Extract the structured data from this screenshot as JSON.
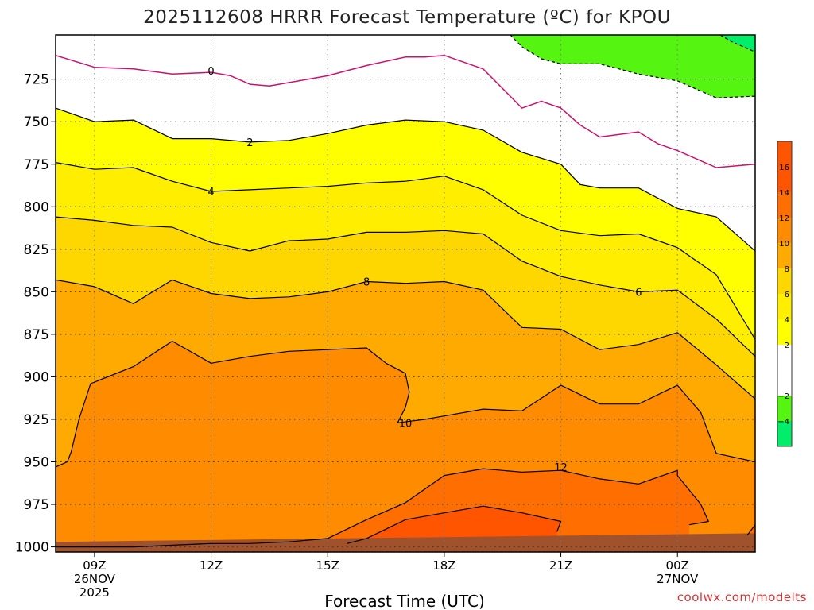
{
  "chart_data": {
    "type": "heatmap",
    "title": "2025112608 HRRR Forecast Temperature (ºC) for KPOU",
    "xlabel": "Forecast Time (UTC)",
    "credit": "coolwx.com/modelts",
    "x_ticks": [
      {
        "hour": 9,
        "lines": [
          "09Z",
          "26NOV",
          "2025"
        ]
      },
      {
        "hour": 12,
        "lines": [
          "12Z"
        ]
      },
      {
        "hour": 15,
        "lines": [
          "15Z"
        ]
      },
      {
        "hour": 18,
        "lines": [
          "18Z"
        ]
      },
      {
        "hour": 21,
        "lines": [
          "21Z"
        ]
      },
      {
        "hour": 24,
        "lines": [
          "00Z",
          "27NOV"
        ]
      }
    ],
    "xlim": [
      8,
      26
    ],
    "ylim": [
      1003,
      699
    ],
    "y_ticks": [
      725,
      750,
      775,
      800,
      825,
      850,
      875,
      900,
      925,
      950,
      975,
      1000
    ],
    "grid": true,
    "colorbar": {
      "bins": [
        {
          "min": -6,
          "max": -4,
          "color": "#00ee6a"
        },
        {
          "min": -4,
          "max": -2,
          "color": "#55f411"
        },
        {
          "min": -2,
          "max": 0,
          "color": "#ffffff"
        },
        {
          "min": 0,
          "max": 2,
          "color": "#ffffff"
        },
        {
          "min": 2,
          "max": 4,
          "color": "#ffff00"
        },
        {
          "min": 4,
          "max": 6,
          "color": "#ffee00"
        },
        {
          "min": 6,
          "max": 8,
          "color": "#ffd700"
        },
        {
          "min": 8,
          "max": 10,
          "color": "#ffaa00"
        },
        {
          "min": 10,
          "max": 12,
          "color": "#ff8c00"
        },
        {
          "min": 12,
          "max": 14,
          "color": "#ff6e00"
        },
        {
          "min": 14,
          "max": 16,
          "color": "#ff5500"
        },
        {
          "min": 16,
          "max": 18,
          "color": "#ff5500"
        }
      ],
      "tick_labels": [
        "−4",
        "−2",
        "2",
        "4",
        "6",
        "8",
        "10",
        "12",
        "14",
        "16"
      ],
      "tick_values": [
        -4,
        -2,
        2,
        4,
        6,
        8,
        10,
        12,
        14,
        16
      ]
    },
    "ground": {
      "color": "#a0522d",
      "pressure": [
        [
          8,
          997
        ],
        [
          26,
          992
        ]
      ]
    },
    "contours": [
      {
        "level": 0,
        "color": "#c8146e",
        "label": "0",
        "label_at": [
          12,
          720
        ],
        "points": [
          [
            8,
            711
          ],
          [
            9,
            718
          ],
          [
            10,
            719
          ],
          [
            11,
            722
          ],
          [
            12,
            721
          ],
          [
            12.5,
            723
          ],
          [
            13,
            728
          ],
          [
            13.5,
            729
          ],
          [
            14,
            727
          ],
          [
            15,
            723
          ],
          [
            16,
            717
          ],
          [
            17,
            712
          ],
          [
            17.5,
            712
          ],
          [
            18,
            711
          ],
          [
            19,
            719
          ],
          [
            20,
            742
          ],
          [
            20.5,
            738
          ],
          [
            21,
            742
          ],
          [
            21.5,
            752
          ],
          [
            22,
            759
          ],
          [
            23,
            756
          ],
          [
            23.5,
            763
          ],
          [
            24,
            767
          ],
          [
            25,
            777
          ],
          [
            26,
            775
          ]
        ]
      },
      {
        "level": 2,
        "color": "#000000",
        "label": "2",
        "label_at": [
          13,
          762
        ],
        "points": [
          [
            8,
            742
          ],
          [
            9,
            750
          ],
          [
            10,
            749
          ],
          [
            11,
            760
          ],
          [
            12,
            760
          ],
          [
            13,
            762
          ],
          [
            14,
            761
          ],
          [
            15,
            757
          ],
          [
            16,
            752
          ],
          [
            17,
            749
          ],
          [
            18,
            750
          ],
          [
            19,
            755
          ],
          [
            20,
            768
          ],
          [
            21,
            775
          ],
          [
            21.5,
            787
          ],
          [
            22,
            789
          ],
          [
            23,
            789
          ],
          [
            24,
            801
          ],
          [
            25,
            806
          ],
          [
            26,
            826
          ]
        ]
      },
      {
        "level": 4,
        "color": "#000000",
        "label": "4",
        "label_at": [
          12,
          791
        ],
        "points": [
          [
            8,
            774
          ],
          [
            9,
            778
          ],
          [
            10,
            777
          ],
          [
            11,
            785
          ],
          [
            12,
            791
          ],
          [
            13,
            790
          ],
          [
            14,
            789
          ],
          [
            15,
            788
          ],
          [
            16,
            786
          ],
          [
            17,
            785
          ],
          [
            18,
            782
          ],
          [
            19,
            790
          ],
          [
            20,
            805
          ],
          [
            21,
            814
          ],
          [
            22,
            817
          ],
          [
            23,
            816
          ],
          [
            24,
            824
          ],
          [
            25,
            840
          ],
          [
            26,
            878
          ]
        ]
      },
      {
        "level": 6,
        "color": "#000000",
        "label": "6",
        "label_at": [
          23,
          850
        ],
        "points": [
          [
            8,
            806
          ],
          [
            9,
            808
          ],
          [
            10,
            811
          ],
          [
            11,
            812
          ],
          [
            12,
            821
          ],
          [
            13,
            826
          ],
          [
            14,
            820
          ],
          [
            15,
            819
          ],
          [
            16,
            815
          ],
          [
            17,
            815
          ],
          [
            18,
            814
          ],
          [
            19,
            816
          ],
          [
            20,
            832
          ],
          [
            21,
            841
          ],
          [
            22,
            846
          ],
          [
            23,
            850
          ],
          [
            24,
            849
          ],
          [
            25,
            866
          ],
          [
            26,
            888
          ]
        ]
      },
      {
        "level": 8,
        "color": "#000000",
        "label": "8",
        "label_at": [
          16,
          844
        ],
        "points": [
          [
            8,
            843
          ],
          [
            9,
            847
          ],
          [
            10,
            857
          ],
          [
            11,
            843
          ],
          [
            12,
            851
          ],
          [
            13,
            854
          ],
          [
            14,
            853
          ],
          [
            15,
            850
          ],
          [
            16,
            844
          ],
          [
            17,
            845
          ],
          [
            18,
            844
          ],
          [
            19,
            849
          ],
          [
            20,
            871
          ],
          [
            21,
            872
          ],
          [
            22,
            884
          ],
          [
            23,
            881
          ],
          [
            24,
            874
          ],
          [
            25,
            893
          ],
          [
            26,
            913
          ]
        ]
      },
      {
        "level": 10,
        "color": "#000000",
        "label": "10",
        "label_at": [
          17,
          927
        ],
        "points": [
          [
            8,
            953
          ],
          [
            8.3,
            950
          ],
          [
            8.4,
            944
          ],
          [
            8.6,
            925
          ],
          [
            8.9,
            904
          ],
          [
            10,
            894
          ],
          [
            11,
            879
          ],
          [
            12,
            892
          ],
          [
            13,
            888
          ],
          [
            14,
            885
          ],
          [
            15,
            884
          ],
          [
            16,
            883
          ],
          [
            16.5,
            892
          ],
          [
            17,
            898
          ],
          [
            17.1,
            909
          ],
          [
            17,
            918
          ],
          [
            16.8,
            927
          ],
          [
            17.5,
            925
          ],
          [
            18,
            923
          ],
          [
            19,
            919
          ],
          [
            20,
            920
          ],
          [
            21,
            905
          ],
          [
            22,
            916
          ],
          [
            23,
            916
          ],
          [
            24,
            905
          ],
          [
            24.6,
            921
          ],
          [
            25,
            945
          ],
          [
            26,
            950
          ]
        ]
      },
      {
        "level": 12,
        "color": "#000000",
        "label": "12",
        "label_at": [
          21,
          953
        ],
        "points": [
          [
            8,
            1000
          ],
          [
            9,
            1000
          ],
          [
            10,
            1000
          ],
          [
            11,
            999
          ],
          [
            12,
            998
          ],
          [
            13,
            998
          ],
          [
            14,
            997
          ],
          [
            15,
            995
          ],
          [
            16,
            984
          ],
          [
            17,
            974
          ],
          [
            18,
            958
          ],
          [
            19,
            954
          ],
          [
            20,
            956
          ],
          [
            21,
            955
          ],
          [
            22,
            960
          ],
          [
            23,
            963
          ],
          [
            24,
            955
          ],
          [
            24,
            958
          ],
          [
            24.6,
            975
          ],
          [
            24.8,
            985
          ],
          [
            24.3,
            987
          ]
        ]
      },
      {
        "level": 12,
        "color": "#000000",
        "label": "",
        "label_at": null,
        "points": [
          [
            25.8,
            993
          ],
          [
            26,
            987
          ]
        ]
      },
      {
        "level": 14,
        "color": "#000000",
        "label": "",
        "label_at": null,
        "points": [
          [
            15.5,
            998
          ],
          [
            16,
            995
          ],
          [
            17,
            984
          ],
          [
            18,
            980
          ],
          [
            19,
            976
          ],
          [
            20,
            980
          ],
          [
            21,
            985
          ],
          [
            20.9,
            991
          ]
        ]
      },
      {
        "level": -2,
        "color": "#000000",
        "label": "",
        "label_at": null,
        "dashed": true,
        "points": [
          [
            19.7,
            699
          ],
          [
            20,
            706
          ],
          [
            20.5,
            713
          ],
          [
            21,
            716
          ],
          [
            22,
            716
          ],
          [
            23,
            722
          ],
          [
            24,
            726
          ],
          [
            25,
            736
          ],
          [
            26,
            735
          ]
        ]
      },
      {
        "level": -4,
        "color": "#000000",
        "label": "",
        "label_at": null,
        "dashed": true,
        "points": [
          [
            25.1,
            699
          ],
          [
            25.4,
            703
          ],
          [
            26,
            709
          ]
        ]
      }
    ]
  }
}
